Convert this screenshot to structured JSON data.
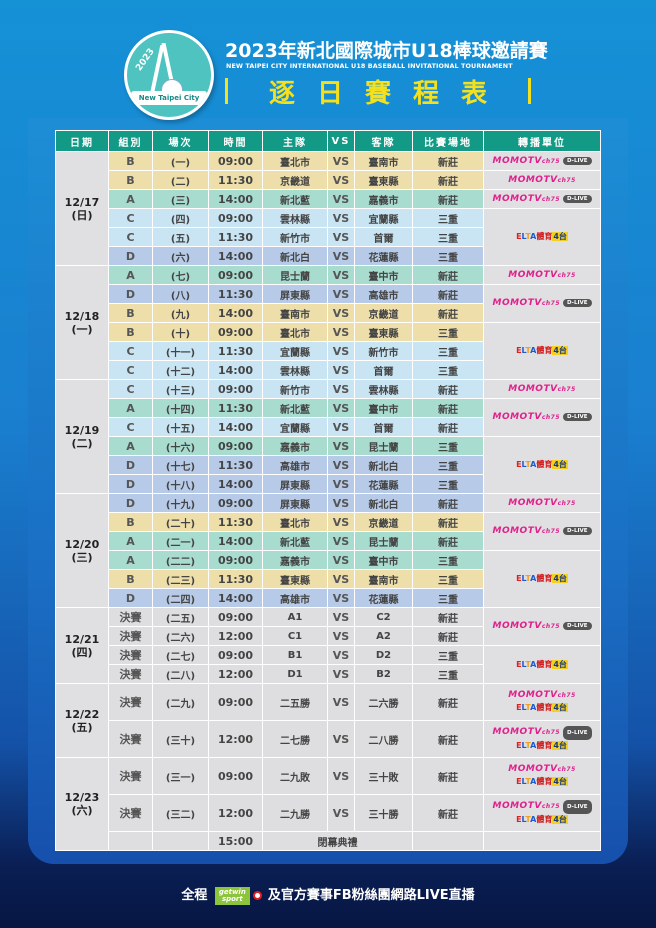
{
  "header": {
    "logo": {
      "year_text": "2023",
      "ribbon_text": "New Taipei City"
    },
    "title": "2023年新北國際城市U18棒球邀請賽",
    "subtitle": "NEW TAIPEI CITY INTERNATIONAL U18 BASEBALL INVITATIONAL TOURNAMENT",
    "schedule_title": "逐日賽程表"
  },
  "table": {
    "columns": [
      "日期",
      "組別",
      "場次",
      "時間",
      "主隊",
      "VS",
      "客隊",
      "比賽場地",
      "轉播單位"
    ],
    "days": [
      {
        "date": "12/17",
        "weekday": "(日)",
        "games": [
          {
            "group": "B",
            "game": "(一)",
            "time": "09:00",
            "home": "臺北市",
            "vs": "VS",
            "away": "臺南市",
            "venue": "新莊"
          },
          {
            "group": "B",
            "game": "(二)",
            "time": "11:30",
            "home": "京畿道",
            "vs": "VS",
            "away": "臺東縣",
            "venue": "新莊"
          },
          {
            "group": "A",
            "game": "(三)",
            "time": "14:00",
            "home": "新北藍",
            "vs": "VS",
            "away": "嘉義市",
            "venue": "新莊"
          },
          {
            "group": "C",
            "game": "(四)",
            "time": "09:00",
            "home": "雲林縣",
            "vs": "VS",
            "away": "宜蘭縣",
            "venue": "三重"
          },
          {
            "group": "C",
            "game": "(五)",
            "time": "11:30",
            "home": "新竹市",
            "vs": "VS",
            "away": "首爾",
            "venue": "三重"
          },
          {
            "group": "D",
            "game": "(六)",
            "time": "14:00",
            "home": "新北白",
            "vs": "VS",
            "away": "花蓮縣",
            "venue": "三重"
          }
        ]
      },
      {
        "date": "12/18",
        "weekday": "(一)",
        "games": [
          {
            "group": "A",
            "game": "(七)",
            "time": "09:00",
            "home": "昆士蘭",
            "vs": "VS",
            "away": "臺中市",
            "venue": "新莊"
          },
          {
            "group": "D",
            "game": "(八)",
            "time": "11:30",
            "home": "屏東縣",
            "vs": "VS",
            "away": "高雄市",
            "venue": "新莊"
          },
          {
            "group": "B",
            "game": "(九)",
            "time": "14:00",
            "home": "臺南市",
            "vs": "VS",
            "away": "京畿道",
            "venue": "新莊"
          },
          {
            "group": "B",
            "game": "(十)",
            "time": "09:00",
            "home": "臺北市",
            "vs": "VS",
            "away": "臺東縣",
            "venue": "三重"
          },
          {
            "group": "C",
            "game": "(十一)",
            "time": "11:30",
            "home": "宜蘭縣",
            "vs": "VS",
            "away": "新竹市",
            "venue": "三重"
          },
          {
            "group": "C",
            "game": "(十二)",
            "time": "14:00",
            "home": "雲林縣",
            "vs": "VS",
            "away": "首爾",
            "venue": "三重"
          }
        ]
      },
      {
        "date": "12/19",
        "weekday": "(二)",
        "games": [
          {
            "group": "C",
            "game": "(十三)",
            "time": "09:00",
            "home": "新竹市",
            "vs": "VS",
            "away": "雲林縣",
            "venue": "新莊"
          },
          {
            "group": "A",
            "game": "(十四)",
            "time": "11:30",
            "home": "新北藍",
            "vs": "VS",
            "away": "臺中市",
            "venue": "新莊"
          },
          {
            "group": "C",
            "game": "(十五)",
            "time": "14:00",
            "home": "宜蘭縣",
            "vs": "VS",
            "away": "首爾",
            "venue": "新莊"
          },
          {
            "group": "A",
            "game": "(十六)",
            "time": "09:00",
            "home": "嘉義市",
            "vs": "VS",
            "away": "昆士蘭",
            "venue": "三重"
          },
          {
            "group": "D",
            "game": "(十七)",
            "time": "11:30",
            "home": "高雄市",
            "vs": "VS",
            "away": "新北白",
            "venue": "三重"
          },
          {
            "group": "D",
            "game": "(十八)",
            "time": "14:00",
            "home": "屏東縣",
            "vs": "VS",
            "away": "花蓮縣",
            "venue": "三重"
          }
        ]
      },
      {
        "date": "12/20",
        "weekday": "(三)",
        "games": [
          {
            "group": "D",
            "game": "(十九)",
            "time": "09:00",
            "home": "屏東縣",
            "vs": "VS",
            "away": "新北白",
            "venue": "新莊"
          },
          {
            "group": "B",
            "game": "(二十)",
            "time": "11:30",
            "home": "臺北市",
            "vs": "VS",
            "away": "京畿道",
            "venue": "新莊"
          },
          {
            "group": "A",
            "game": "(二一)",
            "time": "14:00",
            "home": "新北藍",
            "vs": "VS",
            "away": "昆士蘭",
            "venue": "新莊"
          },
          {
            "group": "A",
            "game": "(二二)",
            "time": "09:00",
            "home": "嘉義市",
            "vs": "VS",
            "away": "臺中市",
            "venue": "三重"
          },
          {
            "group": "B",
            "game": "(二三)",
            "time": "11:30",
            "home": "臺東縣",
            "vs": "VS",
            "away": "臺南市",
            "venue": "三重"
          },
          {
            "group": "D",
            "game": "(二四)",
            "time": "14:00",
            "home": "高雄市",
            "vs": "VS",
            "away": "花蓮縣",
            "venue": "三重"
          }
        ]
      },
      {
        "date": "12/21",
        "weekday": "(四)",
        "games": [
          {
            "group": "決賽",
            "game": "(二五)",
            "time": "09:00",
            "home": "A1",
            "vs": "VS",
            "away": "C2",
            "venue": "新莊"
          },
          {
            "group": "決賽",
            "game": "(二六)",
            "time": "12:00",
            "home": "C1",
            "vs": "VS",
            "away": "A2",
            "venue": "新莊"
          },
          {
            "group": "決賽",
            "game": "(二七)",
            "time": "09:00",
            "home": "B1",
            "vs": "VS",
            "away": "D2",
            "venue": "三重"
          },
          {
            "group": "決賽",
            "game": "(二八)",
            "time": "12:00",
            "home": "D1",
            "vs": "VS",
            "away": "B2",
            "venue": "三重"
          }
        ]
      },
      {
        "date": "12/22",
        "weekday": "(五)",
        "games": [
          {
            "group": "決賽",
            "game": "(二九)",
            "time": "09:00",
            "home": "二五勝",
            "vs": "VS",
            "away": "二六勝",
            "venue": "新莊"
          },
          {
            "group": "決賽",
            "game": "(三十)",
            "time": "12:00",
            "home": "二七勝",
            "vs": "VS",
            "away": "二八勝",
            "venue": "新莊"
          }
        ]
      },
      {
        "date": "12/23",
        "weekday": "(六)",
        "games": [
          {
            "group": "決賽",
            "game": "(三一)",
            "time": "09:00",
            "home": "二九敗",
            "vs": "VS",
            "away": "三十敗",
            "venue": "新莊"
          },
          {
            "group": "決賽",
            "game": "(三二)",
            "time": "12:00",
            "home": "二九勝",
            "vs": "VS",
            "away": "三十勝",
            "venue": "新莊"
          }
        ],
        "ceremony": {
          "time": "15:00",
          "label": "閉幕典禮"
        }
      }
    ],
    "broadcast": {
      "momo": "MOMOTV",
      "momo_ch": "ch75",
      "dlive": "D-LIVE",
      "elta_e": "E",
      "elta_l": "L",
      "elta_t": "T",
      "elta_a": "A",
      "elta_sports": "體育",
      "elta_4": "4台"
    }
  },
  "footer": {
    "prefix": "全程",
    "getwin_line1": "getwin",
    "getwin_line2": "sport",
    "suffix": "及官方賽事FB粉絲團網路LIVE直播"
  },
  "colors": {
    "header_teal": "#139a86",
    "group_A": "#a8dccf",
    "group_B": "#eedfaa",
    "group_C": "#c9e5f4",
    "group_D": "#b7cbe8",
    "title_yellow": "#f4e01e",
    "momo_pink": "#e0208c"
  }
}
